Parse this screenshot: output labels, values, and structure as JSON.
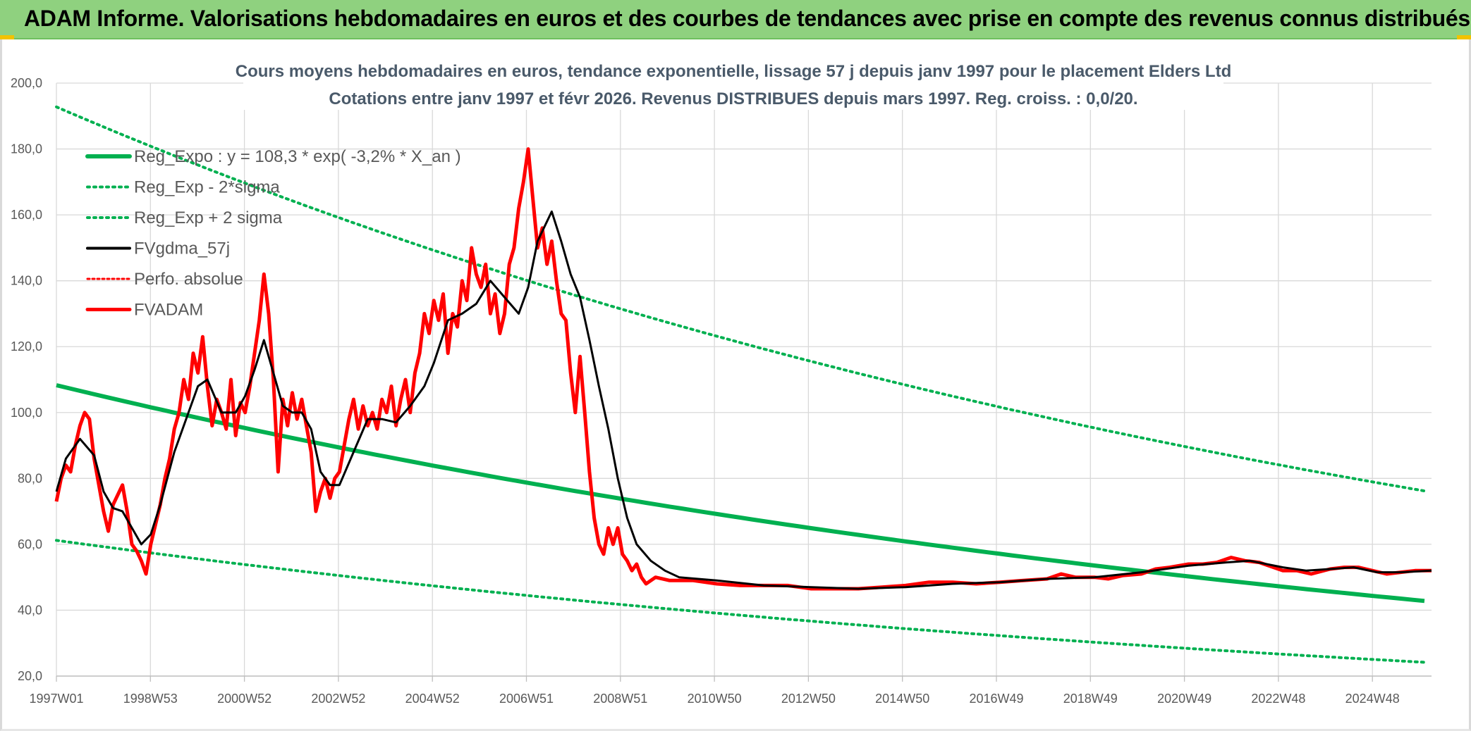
{
  "header": {
    "title": "ADAM Informe. Valorisations hebdomadaires en euros et des courbes de tendances avec prise en compte des revenus connus distribués"
  },
  "colors": {
    "banner": "#8fd17f",
    "reg_expo": "#00b050",
    "fvadam": "#ff0000",
    "fvgdma": "#000000",
    "grid": "#d9d9d9"
  },
  "chart_data": {
    "type": "line",
    "title": "Cours moyens hebdomadaires en euros, tendance exponentielle, lissage 57 j depuis janv 1997 pour le placement Elders Ltd",
    "subtitle": "Cotations entre janv 1997 et févr 2026. Revenus DISTRIBUES depuis mars 1997. Reg. croiss. : 0,0/20.",
    "xlabel": "",
    "ylabel": "",
    "ylim": [
      20,
      200
    ],
    "yticks": [
      "20,0",
      "40,0",
      "60,0",
      "80,0",
      "100,0",
      "120,0",
      "140,0",
      "160,0",
      "180,0",
      "200,0"
    ],
    "xlim": [
      1997.0,
      2026.15
    ],
    "xticks": [
      "1997W01",
      "1998W53",
      "2000W52",
      "2002W52",
      "2004W52",
      "2006W51",
      "2008W51",
      "2010W50",
      "2012W50",
      "2014W50",
      "2016W49",
      "2018W49",
      "2020W49",
      "2022W48",
      "2024W48"
    ],
    "grid": true,
    "legend_position": "top-left",
    "regression": {
      "a": 108.3,
      "rate": -0.032,
      "sigma_minus_factor": 0.565,
      "sigma_plus_factor": 1.78
    },
    "series": [
      {
        "name": "Reg_Expo : y = 108,3 * exp( -3,2% *  X_an )",
        "style": "solid-green"
      },
      {
        "name": "Reg_Exp - 2*sigma",
        "style": "dotted-green"
      },
      {
        "name": "Reg_Exp + 2 sigma",
        "style": "dotted-green"
      },
      {
        "name": "FVgdma_57j",
        "style": "solid-black",
        "points": [
          [
            1997.0,
            76
          ],
          [
            1997.2,
            86
          ],
          [
            1997.5,
            92
          ],
          [
            1997.8,
            87
          ],
          [
            1998.0,
            76
          ],
          [
            1998.2,
            71
          ],
          [
            1998.4,
            70
          ],
          [
            1998.6,
            65
          ],
          [
            1998.8,
            60
          ],
          [
            1999.0,
            63
          ],
          [
            1999.2,
            72
          ],
          [
            1999.5,
            88
          ],
          [
            1999.8,
            100
          ],
          [
            2000.0,
            108
          ],
          [
            2000.2,
            110
          ],
          [
            2000.5,
            100
          ],
          [
            2000.8,
            100
          ],
          [
            2001.0,
            105
          ],
          [
            2001.2,
            113
          ],
          [
            2001.4,
            122
          ],
          [
            2001.6,
            112
          ],
          [
            2001.8,
            102
          ],
          [
            2002.0,
            100
          ],
          [
            2002.2,
            100
          ],
          [
            2002.4,
            95
          ],
          [
            2002.6,
            82
          ],
          [
            2002.8,
            78
          ],
          [
            2003.0,
            78
          ],
          [
            2003.3,
            88
          ],
          [
            2003.6,
            98
          ],
          [
            2003.9,
            98
          ],
          [
            2004.2,
            97
          ],
          [
            2004.5,
            102
          ],
          [
            2004.8,
            108
          ],
          [
            2005.0,
            115
          ],
          [
            2005.3,
            128
          ],
          [
            2005.6,
            130
          ],
          [
            2005.9,
            133
          ],
          [
            2006.2,
            140
          ],
          [
            2006.5,
            135
          ],
          [
            2006.8,
            130
          ],
          [
            2007.0,
            138
          ],
          [
            2007.2,
            152
          ],
          [
            2007.5,
            161
          ],
          [
            2007.7,
            152
          ],
          [
            2007.9,
            142
          ],
          [
            2008.1,
            135
          ],
          [
            2008.3,
            122
          ],
          [
            2008.5,
            108
          ],
          [
            2008.7,
            95
          ],
          [
            2008.9,
            80
          ],
          [
            2009.1,
            68
          ],
          [
            2009.3,
            60
          ],
          [
            2009.6,
            55
          ],
          [
            2009.9,
            52
          ],
          [
            2010.2,
            50
          ],
          [
            2011.0,
            49
          ],
          [
            2012.0,
            47.5
          ],
          [
            2013.0,
            47
          ],
          [
            2014.0,
            46.5
          ],
          [
            2015.0,
            47
          ],
          [
            2016.0,
            48
          ],
          [
            2017.0,
            48.5
          ],
          [
            2018.0,
            49.5
          ],
          [
            2019.0,
            50
          ],
          [
            2020.0,
            51.5
          ],
          [
            2021.0,
            53.5
          ],
          [
            2021.8,
            54.5
          ],
          [
            2022.3,
            55
          ],
          [
            2023.0,
            53
          ],
          [
            2023.5,
            52
          ],
          [
            2024.0,
            52.5
          ],
          [
            2024.5,
            53
          ],
          [
            2025.0,
            51.5
          ],
          [
            2025.5,
            51.5
          ],
          [
            2026.15,
            52
          ]
        ]
      },
      {
        "name": "Perfo. absolue",
        "style": "dotted-red"
      },
      {
        "name": "FVADAM",
        "style": "solid-red",
        "points": [
          [
            1997.0,
            73
          ],
          [
            1997.1,
            80
          ],
          [
            1997.2,
            84
          ],
          [
            1997.3,
            82
          ],
          [
            1997.4,
            90
          ],
          [
            1997.5,
            96
          ],
          [
            1997.6,
            100
          ],
          [
            1997.7,
            98
          ],
          [
            1997.8,
            86
          ],
          [
            1997.9,
            78
          ],
          [
            1998.0,
            70
          ],
          [
            1998.1,
            64
          ],
          [
            1998.2,
            72
          ],
          [
            1998.3,
            75
          ],
          [
            1998.4,
            78
          ],
          [
            1998.5,
            70
          ],
          [
            1998.6,
            60
          ],
          [
            1998.7,
            58
          ],
          [
            1998.8,
            55
          ],
          [
            1998.9,
            51
          ],
          [
            1999.0,
            60
          ],
          [
            1999.1,
            66
          ],
          [
            1999.2,
            72
          ],
          [
            1999.3,
            80
          ],
          [
            1999.4,
            86
          ],
          [
            1999.5,
            95
          ],
          [
            1999.6,
            100
          ],
          [
            1999.7,
            110
          ],
          [
            1999.8,
            104
          ],
          [
            1999.9,
            118
          ],
          [
            2000.0,
            112
          ],
          [
            2000.1,
            123
          ],
          [
            2000.2,
            108
          ],
          [
            2000.3,
            96
          ],
          [
            2000.4,
            104
          ],
          [
            2000.5,
            100
          ],
          [
            2000.6,
            95
          ],
          [
            2000.7,
            110
          ],
          [
            2000.8,
            93
          ],
          [
            2000.9,
            103
          ],
          [
            2001.0,
            100
          ],
          [
            2001.1,
            108
          ],
          [
            2001.2,
            118
          ],
          [
            2001.3,
            128
          ],
          [
            2001.4,
            142
          ],
          [
            2001.5,
            130
          ],
          [
            2001.6,
            110
          ],
          [
            2001.7,
            82
          ],
          [
            2001.8,
            104
          ],
          [
            2001.9,
            96
          ],
          [
            2002.0,
            106
          ],
          [
            2002.1,
            98
          ],
          [
            2002.2,
            104
          ],
          [
            2002.3,
            96
          ],
          [
            2002.4,
            88
          ],
          [
            2002.5,
            70
          ],
          [
            2002.6,
            76
          ],
          [
            2002.7,
            80
          ],
          [
            2002.8,
            74
          ],
          [
            2002.9,
            80
          ],
          [
            2003.0,
            82
          ],
          [
            2003.1,
            90
          ],
          [
            2003.2,
            98
          ],
          [
            2003.3,
            104
          ],
          [
            2003.4,
            95
          ],
          [
            2003.5,
            102
          ],
          [
            2003.6,
            96
          ],
          [
            2003.7,
            100
          ],
          [
            2003.8,
            95
          ],
          [
            2003.9,
            104
          ],
          [
            2004.0,
            100
          ],
          [
            2004.1,
            108
          ],
          [
            2004.2,
            96
          ],
          [
            2004.3,
            104
          ],
          [
            2004.4,
            110
          ],
          [
            2004.5,
            100
          ],
          [
            2004.6,
            112
          ],
          [
            2004.7,
            118
          ],
          [
            2004.8,
            130
          ],
          [
            2004.9,
            124
          ],
          [
            2005.0,
            134
          ],
          [
            2005.1,
            128
          ],
          [
            2005.2,
            136
          ],
          [
            2005.3,
            118
          ],
          [
            2005.4,
            130
          ],
          [
            2005.5,
            126
          ],
          [
            2005.6,
            140
          ],
          [
            2005.7,
            134
          ],
          [
            2005.8,
            150
          ],
          [
            2005.9,
            142
          ],
          [
            2006.0,
            138
          ],
          [
            2006.1,
            145
          ],
          [
            2006.2,
            130
          ],
          [
            2006.3,
            136
          ],
          [
            2006.4,
            124
          ],
          [
            2006.5,
            130
          ],
          [
            2006.6,
            145
          ],
          [
            2006.7,
            150
          ],
          [
            2006.8,
            162
          ],
          [
            2006.9,
            170
          ],
          [
            2007.0,
            180
          ],
          [
            2007.1,
            165
          ],
          [
            2007.2,
            150
          ],
          [
            2007.3,
            156
          ],
          [
            2007.4,
            145
          ],
          [
            2007.5,
            152
          ],
          [
            2007.6,
            140
          ],
          [
            2007.7,
            130
          ],
          [
            2007.8,
            128
          ],
          [
            2007.9,
            112
          ],
          [
            2008.0,
            100
          ],
          [
            2008.1,
            117
          ],
          [
            2008.2,
            100
          ],
          [
            2008.3,
            82
          ],
          [
            2008.4,
            68
          ],
          [
            2008.5,
            60
          ],
          [
            2008.6,
            57
          ],
          [
            2008.7,
            65
          ],
          [
            2008.8,
            60
          ],
          [
            2008.9,
            65
          ],
          [
            2009.0,
            57
          ],
          [
            2009.1,
            55
          ],
          [
            2009.2,
            52
          ],
          [
            2009.3,
            54
          ],
          [
            2009.4,
            50
          ],
          [
            2009.5,
            48
          ],
          [
            2009.7,
            50
          ],
          [
            2010.0,
            49
          ],
          [
            2010.5,
            49
          ],
          [
            2011.0,
            48
          ],
          [
            2011.5,
            47.5
          ],
          [
            2012.0,
            47.5
          ],
          [
            2012.5,
            47.5
          ],
          [
            2013.0,
            46.5
          ],
          [
            2013.5,
            46.5
          ],
          [
            2014.0,
            46.5
          ],
          [
            2014.5,
            47
          ],
          [
            2015.0,
            47.5
          ],
          [
            2015.5,
            48.5
          ],
          [
            2016.0,
            48.5
          ],
          [
            2016.5,
            48
          ],
          [
            2017.0,
            48.5
          ],
          [
            2017.5,
            49
          ],
          [
            2018.0,
            49.5
          ],
          [
            2018.3,
            51
          ],
          [
            2018.6,
            50
          ],
          [
            2019.0,
            50
          ],
          [
            2019.3,
            49.5
          ],
          [
            2019.6,
            50.5
          ],
          [
            2020.0,
            51
          ],
          [
            2020.3,
            52.5
          ],
          [
            2020.6,
            53
          ],
          [
            2021.0,
            54
          ],
          [
            2021.3,
            54
          ],
          [
            2021.6,
            54.5
          ],
          [
            2021.9,
            56
          ],
          [
            2022.2,
            55
          ],
          [
            2022.5,
            54.5
          ],
          [
            2022.8,
            53
          ],
          [
            2023.0,
            52
          ],
          [
            2023.3,
            52
          ],
          [
            2023.6,
            51
          ],
          [
            2024.0,
            52.5
          ],
          [
            2024.3,
            53
          ],
          [
            2024.6,
            53
          ],
          [
            2024.9,
            52
          ],
          [
            2025.2,
            51
          ],
          [
            2025.5,
            51.5
          ],
          [
            2025.8,
            52
          ],
          [
            2026.15,
            52
          ]
        ]
      }
    ]
  }
}
